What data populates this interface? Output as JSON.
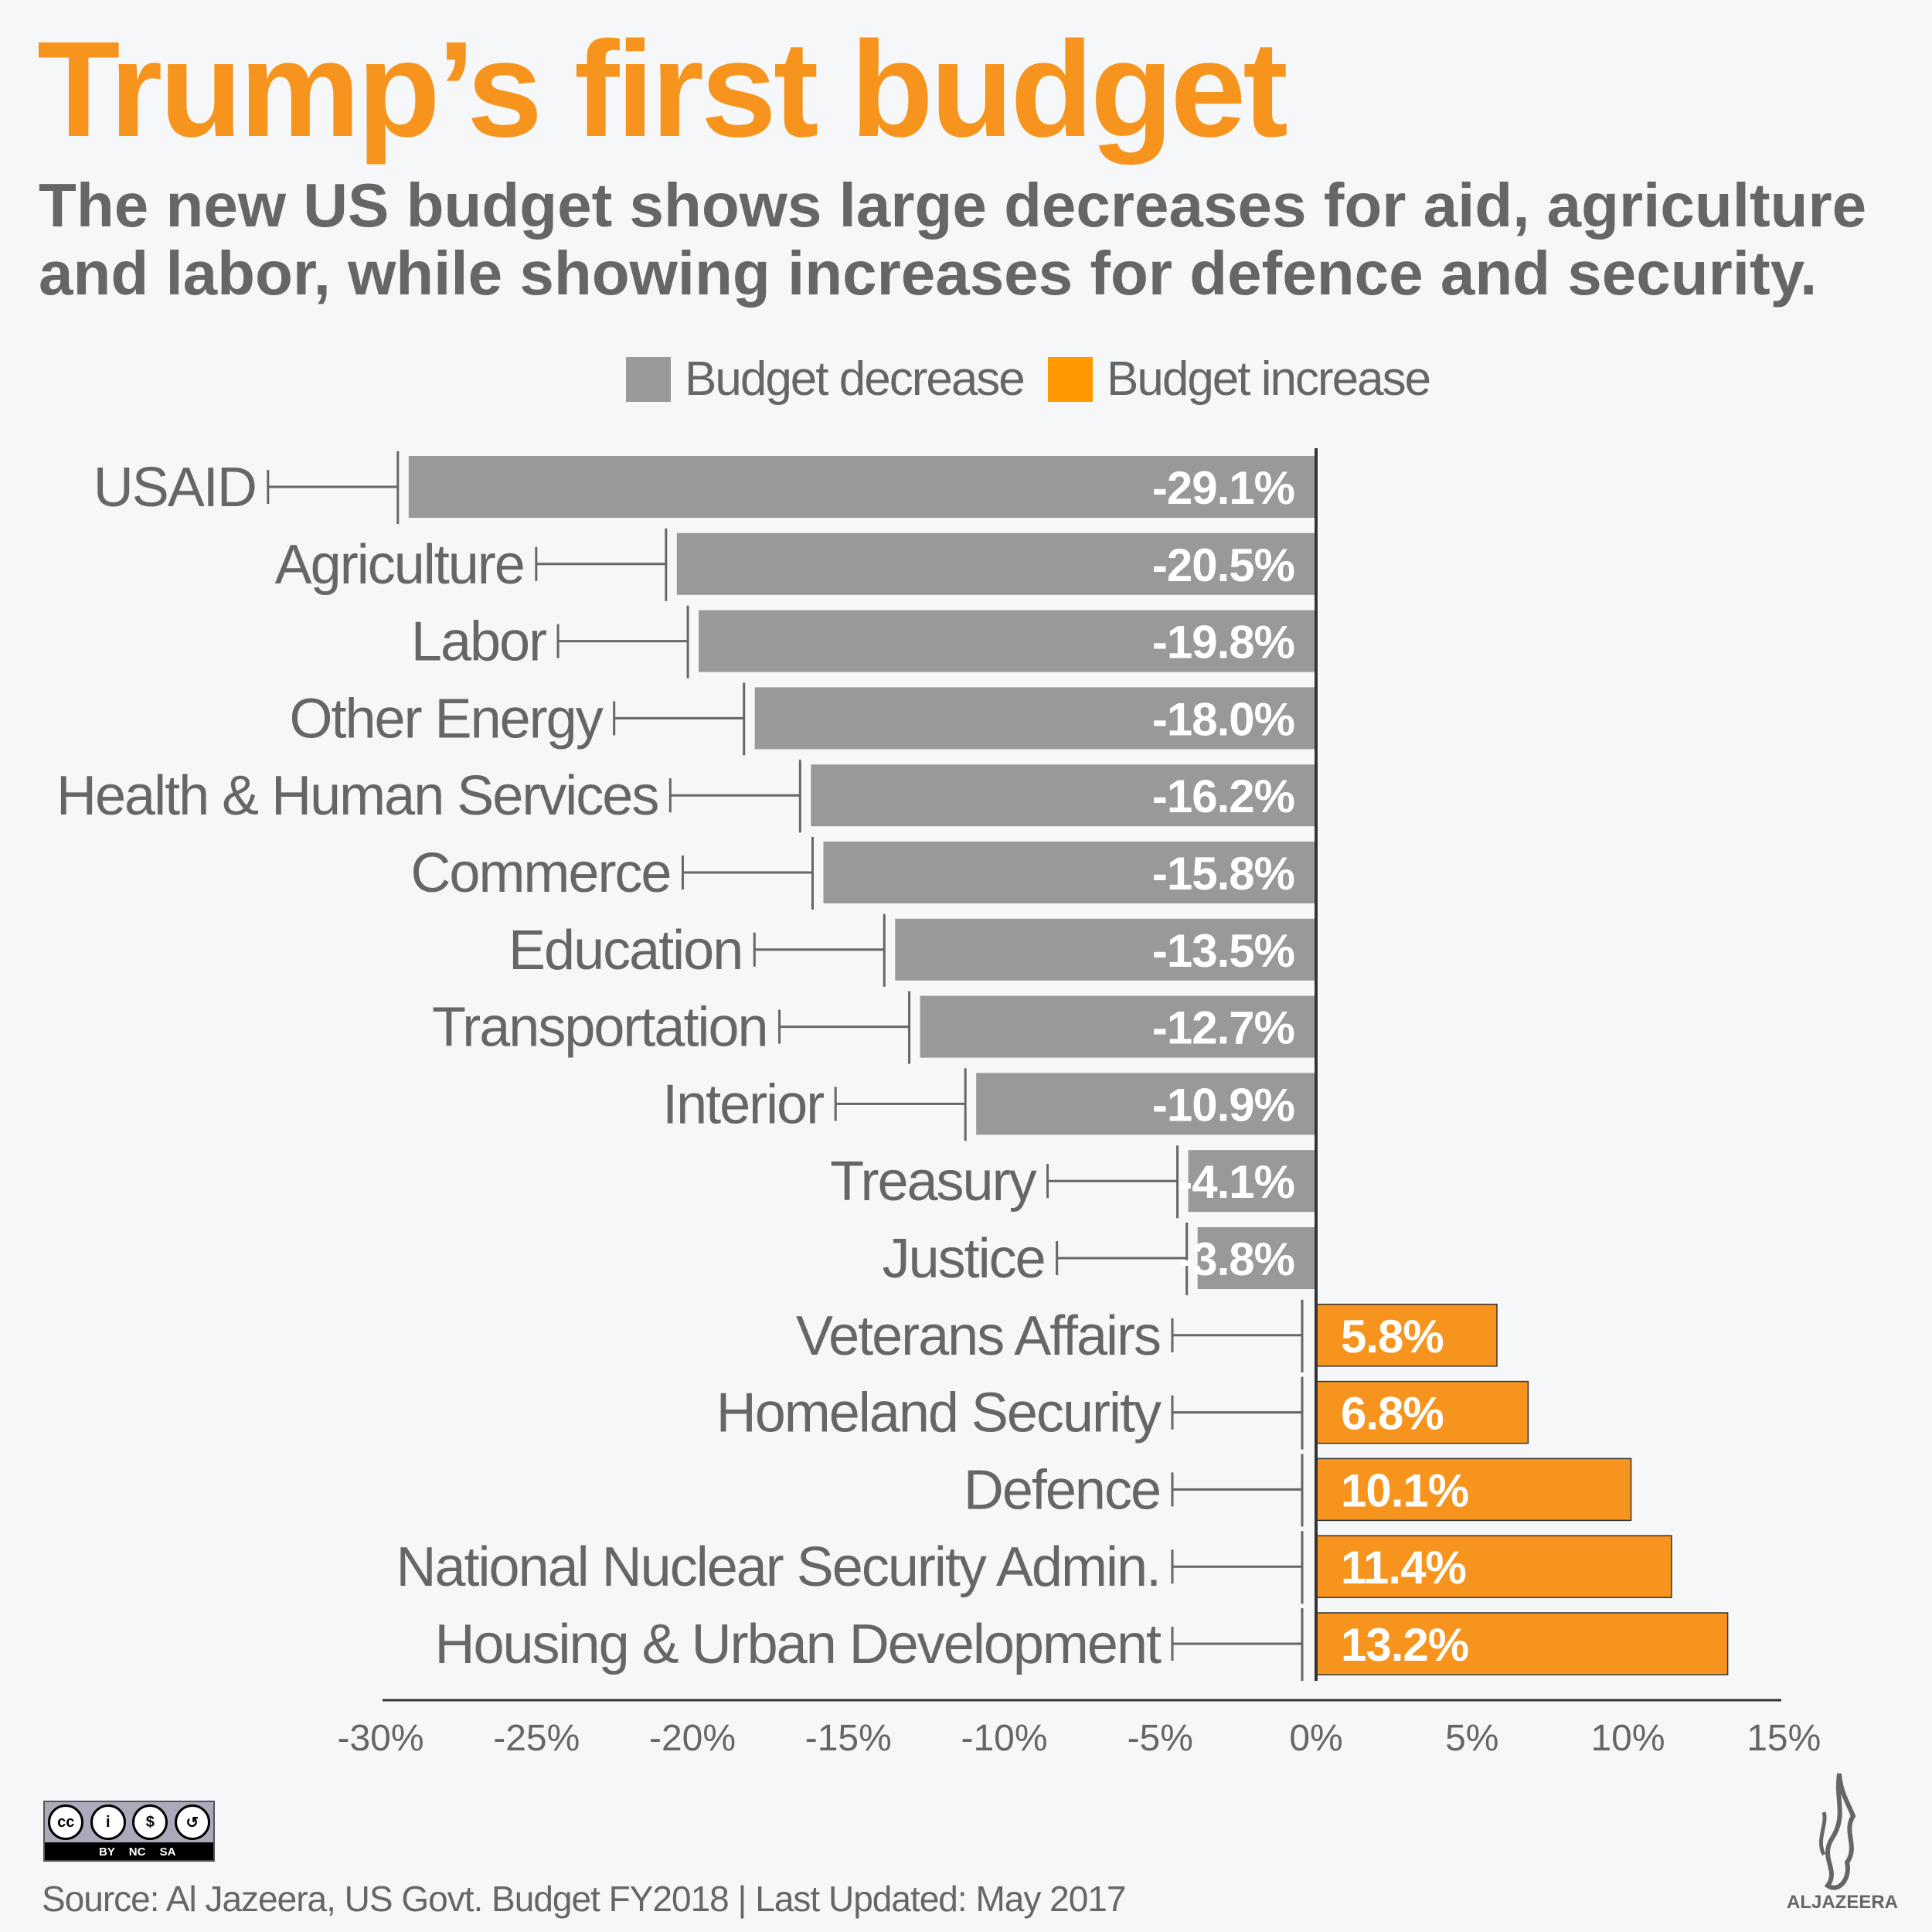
{
  "title": "Trump’s first budget",
  "subtitle": "The new US budget shows large decreases for aid, agriculture and labor, while showing increases for defence and security.",
  "colors": {
    "decrease": "#999999",
    "increase": "#f7941d",
    "legend_increase": "#ff9900",
    "title": "#f7941d"
  },
  "chart_data": {
    "type": "bar",
    "orientation": "horizontal",
    "categories": [
      "USAID",
      "Agriculture",
      "Labor",
      "Other Energy",
      "Health & Human Services",
      "Commerce",
      "Education",
      "Transportation",
      "Interior",
      "Treasury",
      "Justice",
      "Veterans Affairs",
      "Homeland Security",
      "Defence",
      "National Nuclear Security Admin.",
      "Housing & Urban Development"
    ],
    "values": [
      -29.1,
      -20.5,
      -19.8,
      -18.0,
      -16.2,
      -15.8,
      -13.5,
      -12.7,
      -10.9,
      -4.1,
      -3.8,
      5.8,
      6.8,
      10.1,
      11.4,
      13.2
    ],
    "value_labels": [
      "-29.1%",
      "-20.5%",
      "-19.8%",
      "-18.0%",
      "-16.2%",
      "-15.8%",
      "-13.5%",
      "-12.7%",
      "-10.9%",
      "-4.1%",
      "-3.8%",
      "5.8%",
      "6.8%",
      "10.1%",
      "11.4%",
      "13.2%"
    ],
    "xlim": [
      -30,
      15
    ],
    "xticks": [
      -30,
      -25,
      -20,
      -15,
      -10,
      -5,
      0,
      5,
      10,
      15
    ],
    "xtick_labels": [
      "-30%",
      "-25%",
      "-20%",
      "-15%",
      "-10%",
      "-5%",
      "0%",
      "5%",
      "10%",
      "15%"
    ],
    "legend": [
      "Budget decrease",
      "Budget increase"
    ],
    "legend_position": "top",
    "grid": false
  },
  "footer": {
    "source": "Source: Al Jazeera, US Govt. Budget FY2018 | Last Updated: May 2017",
    "license": "BY NC SA",
    "logo": "ALJAZEERA"
  }
}
